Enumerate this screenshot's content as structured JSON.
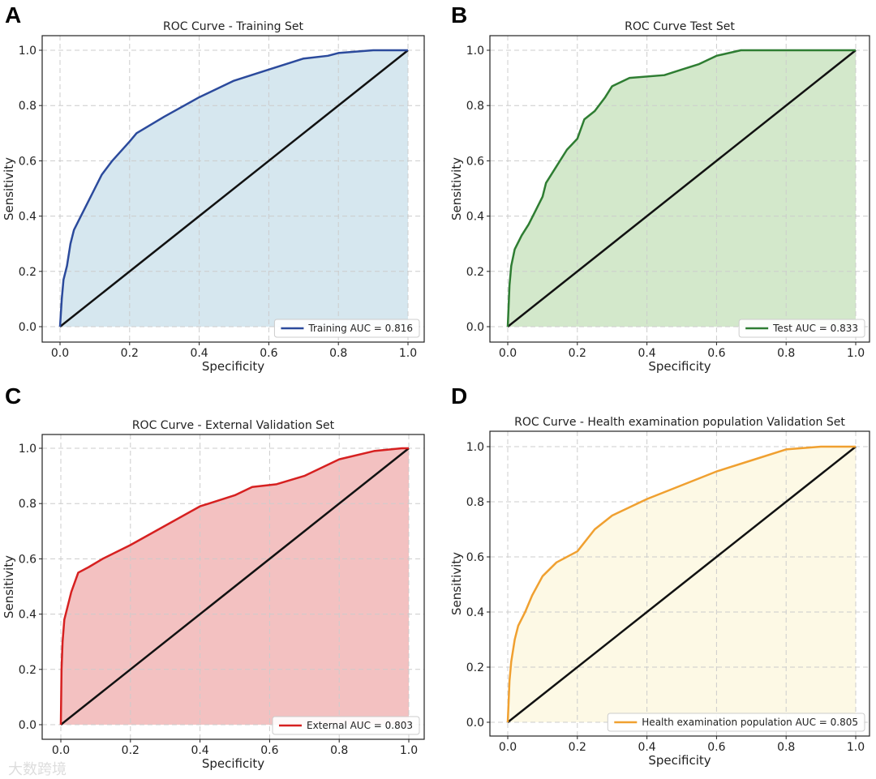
{
  "chart_data": [
    {
      "type": "area",
      "panel_letter": "A",
      "title": "ROC Curve - Training Set",
      "xlabel": "Specificity",
      "ylabel": "Sensitivity",
      "xlim": [
        0,
        1
      ],
      "ylim": [
        0,
        1
      ],
      "xticks": [
        "0.0",
        "0.2",
        "0.4",
        "0.6",
        "0.8",
        "1.0"
      ],
      "yticks": [
        "0.0",
        "0.2",
        "0.4",
        "0.6",
        "0.8",
        "1.0"
      ],
      "grid": true,
      "legend": "lower-right",
      "legend_label": "Training AUC = 0.816",
      "line_color": "#2b4a9c",
      "fill_color": "#d6e7ef",
      "x": [
        0,
        0.005,
        0.01,
        0.02,
        0.03,
        0.04,
        0.06,
        0.08,
        0.1,
        0.12,
        0.15,
        0.2,
        0.22,
        0.3,
        0.4,
        0.5,
        0.6,
        0.7,
        0.77,
        0.8,
        0.9,
        1
      ],
      "y": [
        0,
        0.1,
        0.17,
        0.22,
        0.3,
        0.35,
        0.4,
        0.45,
        0.5,
        0.55,
        0.6,
        0.67,
        0.7,
        0.76,
        0.83,
        0.89,
        0.93,
        0.97,
        0.98,
        0.99,
        1,
        1
      ]
    },
    {
      "type": "area",
      "panel_letter": "B",
      "title": "ROC Curve  Test Set",
      "xlabel": "Specificity",
      "ylabel": "Sensitivity",
      "xlim": [
        0,
        1
      ],
      "ylim": [
        0,
        1
      ],
      "xticks": [
        "0.0",
        "0.2",
        "0.4",
        "0.6",
        "0.8",
        "1.0"
      ],
      "yticks": [
        "0.0",
        "0.2",
        "0.4",
        "0.6",
        "0.8",
        "1.0"
      ],
      "grid": true,
      "legend": "lower-right",
      "legend_label": "Test AUC = 0.833",
      "line_color": "#2e7d32",
      "fill_color": "#d3e8cb",
      "x": [
        0,
        0.005,
        0.01,
        0.02,
        0.04,
        0.06,
        0.08,
        0.1,
        0.11,
        0.14,
        0.17,
        0.2,
        0.22,
        0.25,
        0.28,
        0.3,
        0.35,
        0.45,
        0.5,
        0.55,
        0.6,
        0.67,
        1
      ],
      "y": [
        0,
        0.15,
        0.22,
        0.28,
        0.33,
        0.37,
        0.42,
        0.47,
        0.52,
        0.58,
        0.64,
        0.68,
        0.75,
        0.78,
        0.83,
        0.87,
        0.9,
        0.91,
        0.93,
        0.95,
        0.98,
        1,
        1
      ]
    },
    {
      "type": "area",
      "panel_letter": "C",
      "title": "ROC Curve - External Validation Set",
      "xlabel": "Specificity",
      "ylabel": "Sensitivity",
      "xlim": [
        0,
        1
      ],
      "ylim": [
        0,
        1
      ],
      "xticks": [
        "0.0",
        "0.2",
        "0.4",
        "0.6",
        "0.8",
        "1.0"
      ],
      "yticks": [
        "0.0",
        "0.2",
        "0.4",
        "0.6",
        "0.8",
        "1.0"
      ],
      "grid": true,
      "legend": "lower-right",
      "legend_label": "External AUC = 0.803",
      "line_color": "#d62020",
      "fill_color": "#f3c1c1",
      "x": [
        0,
        0.002,
        0.005,
        0.01,
        0.02,
        0.03,
        0.05,
        0.08,
        0.12,
        0.2,
        0.3,
        0.4,
        0.5,
        0.55,
        0.62,
        0.7,
        0.8,
        0.9,
        0.98,
        1
      ],
      "y": [
        0,
        0.2,
        0.3,
        0.38,
        0.43,
        0.48,
        0.55,
        0.57,
        0.6,
        0.65,
        0.72,
        0.79,
        0.83,
        0.86,
        0.87,
        0.9,
        0.96,
        0.99,
        1,
        1
      ]
    },
    {
      "type": "area",
      "panel_letter": "D",
      "title": "ROC Curve - Health examination population Validation Set",
      "xlabel": "Specificity",
      "ylabel": "Sensitivity",
      "xlim": [
        0,
        1
      ],
      "ylim": [
        0,
        1
      ],
      "xticks": [
        "0.0",
        "0.2",
        "0.4",
        "0.6",
        "0.8",
        "1.0"
      ],
      "yticks": [
        "0.0",
        "0.2",
        "0.4",
        "0.6",
        "0.8",
        "1.0"
      ],
      "grid": true,
      "legend": "lower-right",
      "legend_label": "Health examination population AUC = 0.805",
      "line_color": "#f0a030",
      "fill_color": "#fdf9e5",
      "x": [
        0,
        0.005,
        0.01,
        0.02,
        0.03,
        0.05,
        0.07,
        0.1,
        0.14,
        0.2,
        0.25,
        0.3,
        0.4,
        0.5,
        0.6,
        0.7,
        0.8,
        0.9,
        1
      ],
      "y": [
        0,
        0.15,
        0.22,
        0.3,
        0.35,
        0.4,
        0.46,
        0.53,
        0.58,
        0.62,
        0.7,
        0.75,
        0.81,
        0.86,
        0.91,
        0.95,
        0.99,
        1,
        1
      ]
    }
  ],
  "watermark": "大数跨境"
}
